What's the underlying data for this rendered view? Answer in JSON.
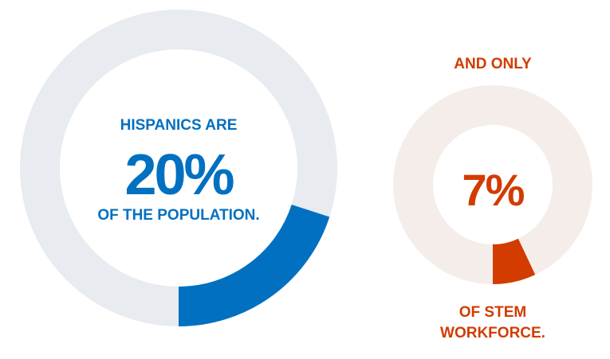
{
  "colors": {
    "track_left": "#e8ebef",
    "accent_left": "#0170c1",
    "track_right": "#f5ede9",
    "accent_right": "#d23c00"
  },
  "chart_data": [
    {
      "type": "pie",
      "variant": "donut",
      "value": 20,
      "unit": "%",
      "text_above": "HISPANICS ARE",
      "text_value": "20%",
      "text_below": "OF THE POPULATION."
    },
    {
      "type": "pie",
      "variant": "donut",
      "value": 7,
      "unit": "%",
      "text_above": "AND ONLY",
      "text_value": "7%",
      "text_below_line1": "OF STEM",
      "text_below_line2": "WORKFORCE."
    }
  ]
}
